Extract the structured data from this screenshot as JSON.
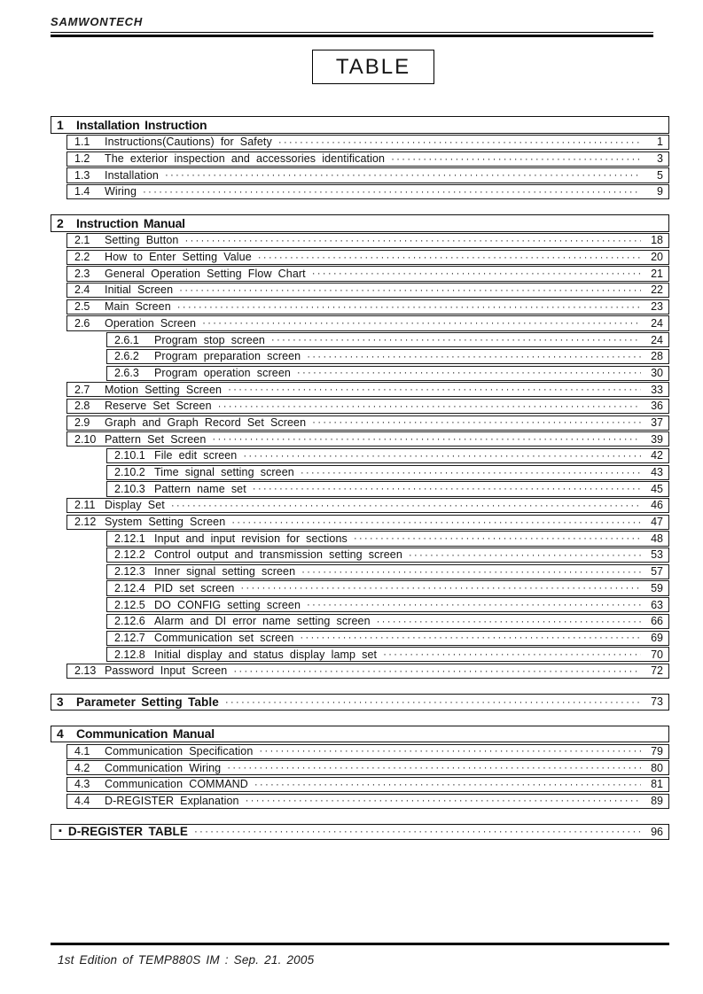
{
  "brand": "SAMWONTECH",
  "page_title": "TABLE",
  "toc": {
    "sections": [
      {
        "kind": "group",
        "number": "1",
        "title": "Installation Instruction",
        "items": [
          {
            "number": "1.1",
            "title": "Instructions(Cautions) for Safety",
            "page": "1",
            "level": 2
          },
          {
            "number": "1.2",
            "title": "The exterior inspection and accessories identification",
            "page": "3",
            "level": 2
          },
          {
            "number": "1.3",
            "title": "Installation",
            "page": "5",
            "level": 2
          },
          {
            "number": "1.4",
            "title": "Wiring",
            "page": "9",
            "level": 2
          }
        ]
      },
      {
        "kind": "group",
        "number": "2",
        "title": "Instruction Manual",
        "items": [
          {
            "number": "2.1",
            "title": "Setting Button",
            "page": "18",
            "level": 2
          },
          {
            "number": "2.2",
            "title": "How to Enter Setting Value",
            "page": "20",
            "level": 2
          },
          {
            "number": "2.3",
            "title": "General Operation Setting Flow Chart",
            "page": "21",
            "level": 2
          },
          {
            "number": "2.4",
            "title": "Initial Screen",
            "page": "22",
            "level": 2
          },
          {
            "number": "2.5",
            "title": "Main Screen",
            "page": "23",
            "level": 2
          },
          {
            "number": "2.6",
            "title": "Operation Screen",
            "page": "24",
            "level": 2
          },
          {
            "number": "2.6.1",
            "title": "Program stop screen",
            "page": "24",
            "level": 3
          },
          {
            "number": "2.6.2",
            "title": "Program preparation screen",
            "page": "28",
            "level": 3
          },
          {
            "number": "2.6.3",
            "title": "Program operation screen",
            "page": "30",
            "level": 3
          },
          {
            "number": "2.7",
            "title": "Motion Setting Screen",
            "page": "33",
            "level": 2
          },
          {
            "number": "2.8",
            "title": "Reserve Set Screen",
            "page": "36",
            "level": 2
          },
          {
            "number": "2.9",
            "title": "Graph and Graph Record Set Screen",
            "page": "37",
            "level": 2
          },
          {
            "number": "2.10",
            "title": "Pattern Set Screen",
            "page": "39",
            "level": 2
          },
          {
            "number": "2.10.1",
            "title": "File edit screen",
            "page": "42",
            "level": 3
          },
          {
            "number": "2.10.2",
            "title": "Time signal setting screen",
            "page": "43",
            "level": 3
          },
          {
            "number": "2.10.3",
            "title": "Pattern name set",
            "page": "45",
            "level": 3
          },
          {
            "number": "2.11",
            "title": "Display Set",
            "page": "46",
            "level": 2
          },
          {
            "number": "2.12",
            "title": "System Setting Screen",
            "page": "47",
            "level": 2
          },
          {
            "number": "2.12.1",
            "title": "Input and input revision for sections",
            "page": "48",
            "level": 3
          },
          {
            "number": "2.12.2",
            "title": "Control output and transmission setting screen",
            "page": "53",
            "level": 3
          },
          {
            "number": "2.12.3",
            "title": "Inner signal setting screen",
            "page": "57",
            "level": 3
          },
          {
            "number": "2.12.4",
            "title": "PID set screen",
            "page": "59",
            "level": 3
          },
          {
            "number": "2.12.5",
            "title": "DO CONFIG setting screen",
            "page": "63",
            "level": 3
          },
          {
            "number": "2.12.6",
            "title": "Alarm and DI error name setting screen",
            "page": "66",
            "level": 3
          },
          {
            "number": "2.12.7",
            "title": "Communication set screen",
            "page": "69",
            "level": 3
          },
          {
            "number": "2.12.8",
            "title": "Initial display and status display lamp set",
            "page": "70",
            "level": 3
          },
          {
            "number": "2.13",
            "title": "Password Input Screen",
            "page": "72",
            "level": 2
          }
        ]
      },
      {
        "kind": "single",
        "number": "3",
        "title": "Parameter Setting Table",
        "page": "73"
      },
      {
        "kind": "group",
        "number": "4",
        "title": "Communication Manual",
        "items": [
          {
            "number": "4.1",
            "title": "Communication Specification",
            "page": "79",
            "level": 2
          },
          {
            "number": "4.2",
            "title": "Communication Wiring",
            "page": "80",
            "level": 2
          },
          {
            "number": "4.3",
            "title": "Communication COMMAND",
            "page": "81",
            "level": 2
          },
          {
            "number": "4.4",
            "title": "D-REGISTER Explanation",
            "page": "89",
            "level": 2
          }
        ]
      },
      {
        "kind": "single-bullet",
        "bullet": "▪",
        "title": "D-REGISTER TABLE",
        "page": "96"
      }
    ]
  },
  "footer": {
    "edition": "1st Edition of TEMP880S IM : Sep. 21. 2005"
  }
}
